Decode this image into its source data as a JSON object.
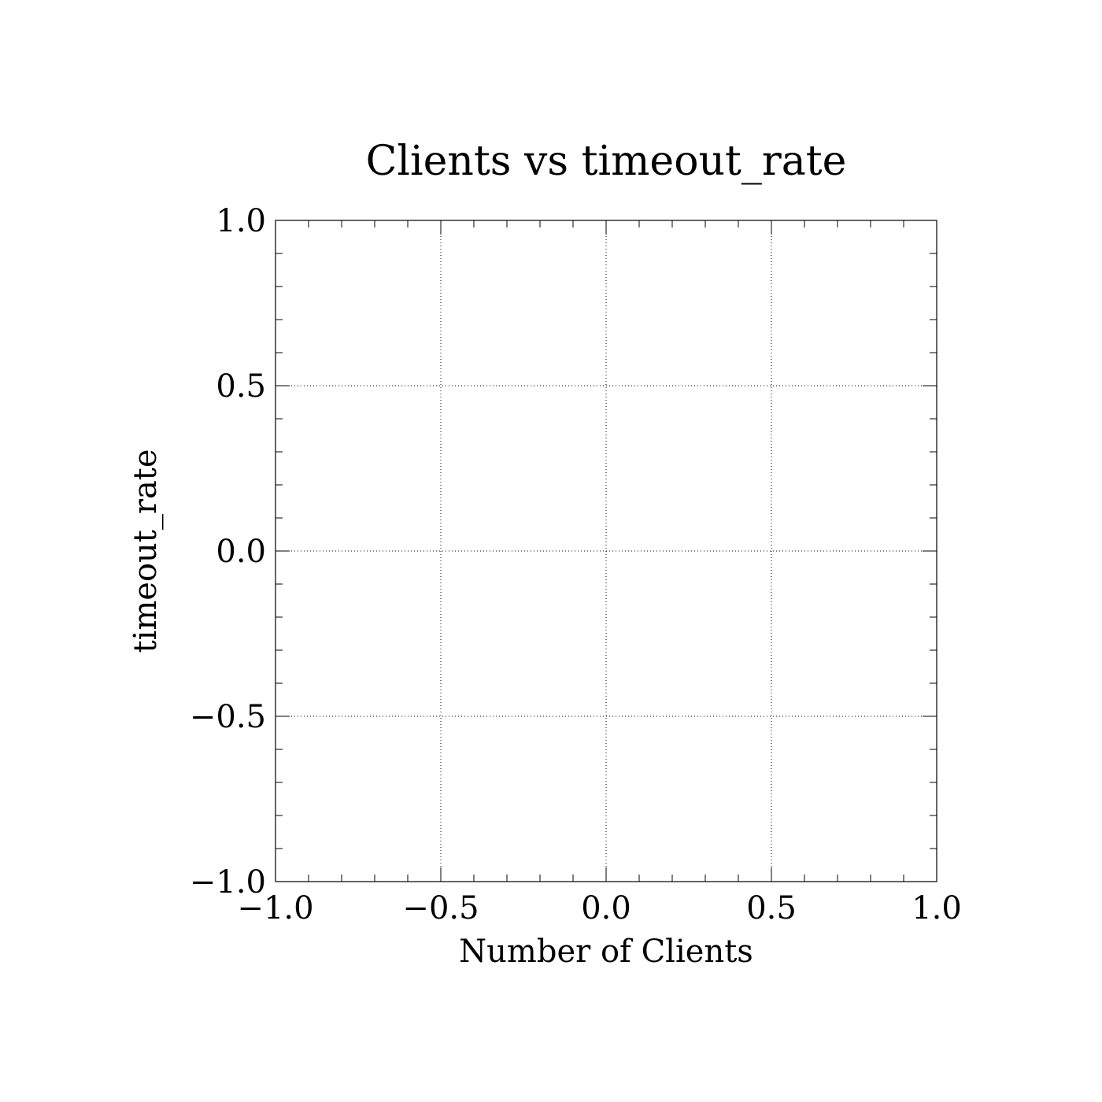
{
  "chart_data": {
    "type": "scatter",
    "title": "Clients vs timeout_rate",
    "xlabel": "Number of Clients",
    "ylabel": "timeout_rate",
    "xlim": [
      -1.0,
      1.0
    ],
    "ylim": [
      -1.0,
      1.0
    ],
    "xticks": [
      -1.0,
      -0.5,
      0.0,
      0.5,
      1.0
    ],
    "yticks": [
      -1.0,
      -0.5,
      0.0,
      0.5,
      1.0
    ],
    "xtick_labels": [
      "−1.0",
      "−0.5",
      "0.0",
      "0.5",
      "1.0"
    ],
    "ytick_labels": [
      "−1.0",
      "−0.5",
      "0.0",
      "0.5",
      "1.0"
    ],
    "x_minor_step": 0.1,
    "y_minor_step": 0.1,
    "grid": true,
    "grid_style": "dotted",
    "series": [],
    "colors": {
      "axes": "#000000",
      "grid": "#000000",
      "background": "#ffffff"
    }
  }
}
